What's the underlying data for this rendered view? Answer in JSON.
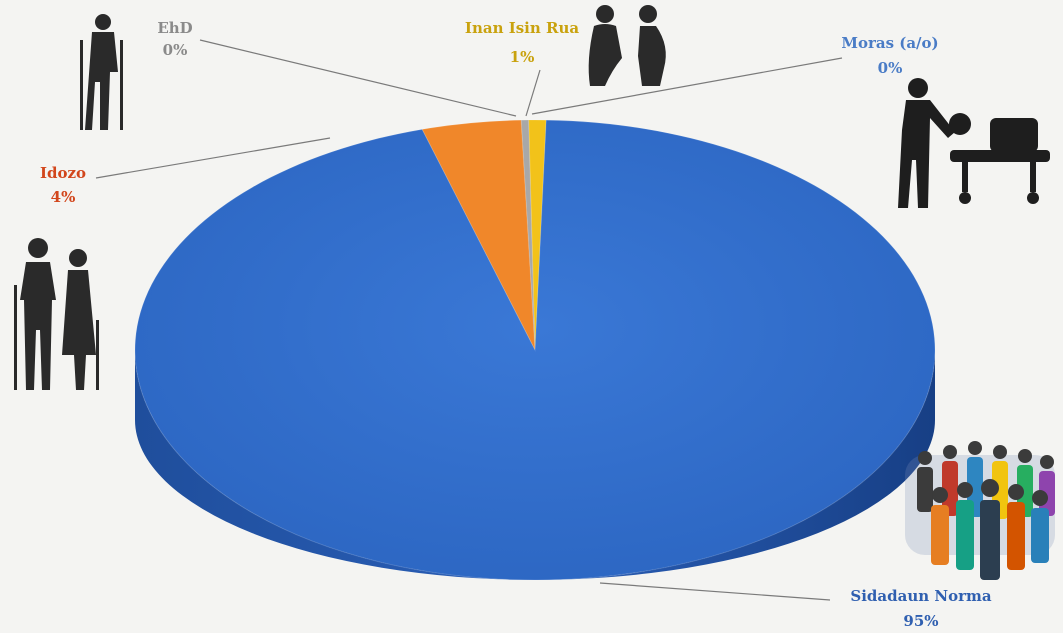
{
  "chart_data": {
    "type": "pie",
    "style": "3d",
    "title": "",
    "slices": [
      {
        "label": "Sidadaun Norma",
        "value": 95,
        "value_label": "95%",
        "color": "#2f6ccc"
      },
      {
        "label": "Idozo",
        "value": 4,
        "value_label": "4%",
        "color": "#f0872a"
      },
      {
        "label": "EhD",
        "value": 0.3,
        "value_label": "0%",
        "color": "#a8a8a8"
      },
      {
        "label": "Inan Isin Rua",
        "value": 0.7,
        "value_label": "1%",
        "color": "#f2c21a"
      },
      {
        "label": "Moras (a/o)",
        "value": 0,
        "value_label": "0%",
        "color": "#5b8fd6"
      }
    ],
    "label_colors": {
      "Sidadaun Norma": "#2f5fb0",
      "Idozo": "#d2461c",
      "EhD": "#8a8a8a",
      "Inan Isin Rua": "#c9a20e",
      "Moras (a/o)": "#4a7cc6"
    },
    "legend": "none",
    "icons": [
      "elderly-crutches-icon",
      "pregnant-woman-icon",
      "stretcher-patient-icon",
      "elderly-couple-icon",
      "crowd-people-icon"
    ]
  }
}
